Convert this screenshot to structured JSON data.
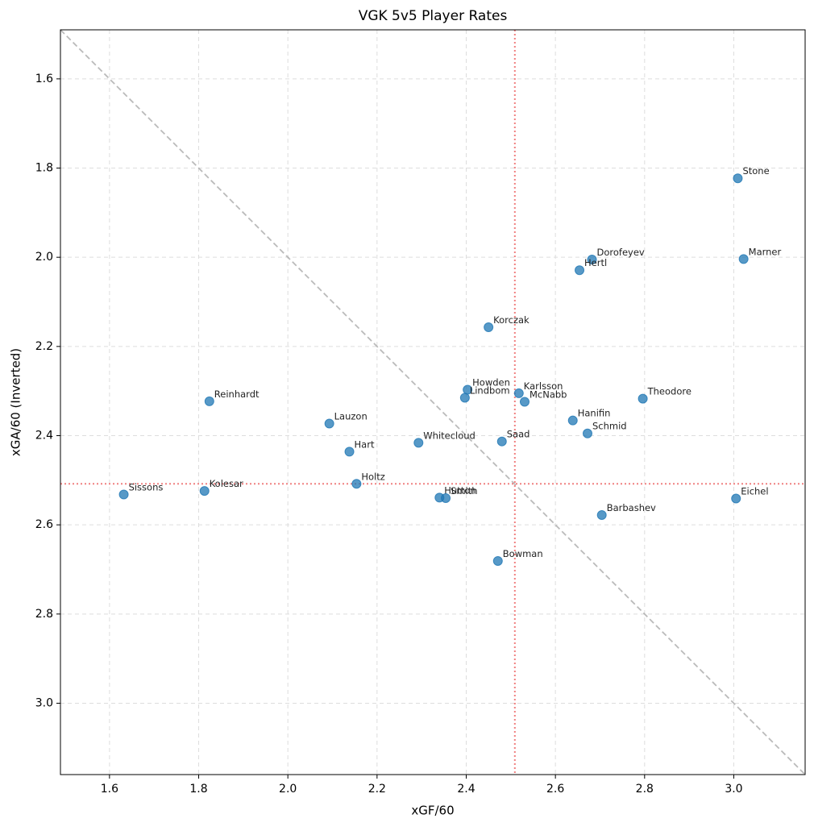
{
  "chart_data": {
    "type": "scatter",
    "title": "VGK 5v5 Player Rates",
    "x_label": "xGF/60",
    "y_label": "xGA/60 (Inverted)",
    "labels": [
      "Stone",
      "Marner",
      "Dorofeyev",
      "Hertl",
      "Korczak",
      "Howden",
      "Lindbom",
      "Karlsson",
      "McNabb",
      "Theodore",
      "Reinhardt",
      "Lauzon",
      "Hanifin",
      "Schmid",
      "Whitecloud",
      "Saad",
      "Hart",
      "Holtz",
      "Kolesar",
      "Sissons",
      "Hutton",
      "Smith",
      "Eichel",
      "Barbashev",
      "Bowman"
    ],
    "x": [
      3.009,
      3.022,
      2.682,
      2.654,
      2.45,
      2.403,
      2.397,
      2.518,
      2.531,
      2.796,
      1.824,
      2.093,
      2.639,
      2.672,
      2.293,
      2.48,
      2.138,
      2.154,
      1.813,
      1.632,
      2.34,
      2.354,
      3.005,
      2.704,
      2.471
    ],
    "values": [
      1.823,
      2.004,
      2.005,
      2.029,
      2.157,
      2.297,
      2.315,
      2.305,
      2.324,
      2.317,
      2.323,
      2.373,
      2.366,
      2.395,
      2.416,
      2.413,
      2.436,
      2.508,
      2.524,
      2.532,
      2.539,
      2.54,
      2.541,
      2.578,
      2.681
    ],
    "color": "#1f77b4",
    "xlim": [
      1.49,
      3.16
    ],
    "ylim": [
      1.49,
      3.16
    ],
    "y_inverted": true,
    "xticks": [
      1.6,
      1.8,
      {
        "value": 2,
        "label": "2.0"
      },
      2.2,
      2.4,
      2.6,
      2.8,
      {
        "value": 3,
        "label": "3.0"
      }
    ],
    "yticks": [
      1.6,
      1.8,
      {
        "value": 2,
        "label": "2.0"
      },
      2.2,
      2.4,
      2.6,
      2.8,
      {
        "value": 3,
        "label": "3.0"
      }
    ],
    "grid": true,
    "ref_x": 2.509,
    "ref_y": 2.508,
    "diagonal": true
  }
}
